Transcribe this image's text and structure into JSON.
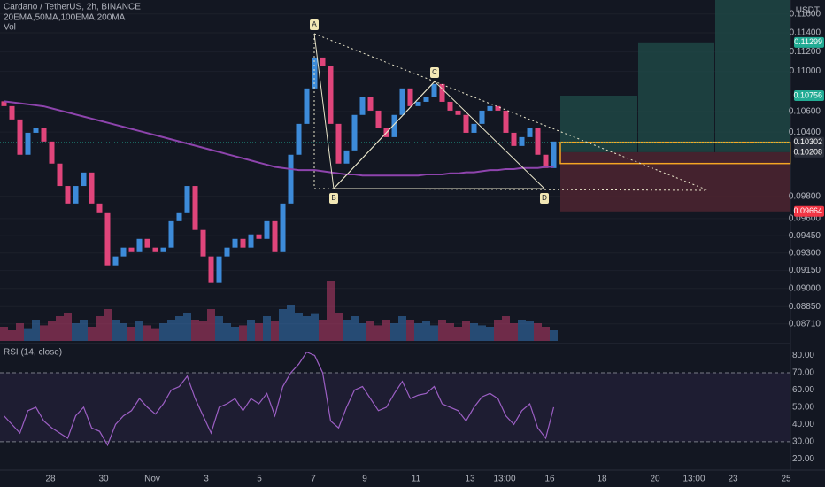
{
  "chart_data": {
    "type": "candlestick",
    "title": "Cardano / TetherUS, 2h, BINANCE",
    "indicators": "20EMA,50MA,100EMA,200MA",
    "volume_label": "Vol",
    "rsi_title": "RSI (14, close)",
    "currency": "USDT",
    "log_scale": true,
    "ylim": [
      0.0856,
      0.1175
    ],
    "yticks": [
      {
        "value": 0.116,
        "label": "0.11600"
      },
      {
        "value": 0.114,
        "label": "0.11400"
      },
      {
        "value": 0.112,
        "label": "0.11200"
      },
      {
        "value": 0.11,
        "label": "0.11000"
      },
      {
        "value": 0.106,
        "label": "0.10600"
      },
      {
        "value": 0.104,
        "label": "0.10400"
      },
      {
        "value": 0.098,
        "label": "0.09800"
      },
      {
        "value": 0.096,
        "label": "0.09600"
      },
      {
        "value": 0.0945,
        "label": "0.09450"
      },
      {
        "value": 0.093,
        "label": "0.09300"
      },
      {
        "value": 0.0915,
        "label": "0.09150"
      },
      {
        "value": 0.09,
        "label": "0.09000"
      },
      {
        "value": 0.0885,
        "label": "0.08850"
      },
      {
        "value": 0.0871,
        "label": "0.08710"
      }
    ],
    "price_tags": [
      {
        "value": 0.11299,
        "label": "0.11299",
        "color": "#22ab94"
      },
      {
        "value": 0.10756,
        "label": "0.10756",
        "color": "#22ab94"
      },
      {
        "value": 0.10302,
        "label": "0.10302",
        "color": "#2a2e39"
      },
      {
        "value": 0.10208,
        "label": "0.10208",
        "color": "#2a2e39"
      },
      {
        "value": 0.09664,
        "label": "0.09664",
        "color": "#f23645"
      }
    ],
    "open": 0.107,
    "closes": [
      0.10652,
      0.10522,
      0.10184,
      0.10393,
      0.10437,
      0.10309,
      0.10101,
      0.09894,
      0.09735,
      0.09894,
      0.10018,
      0.09735,
      0.09656,
      0.09194,
      0.0927,
      0.09346,
      0.09307,
      0.09422,
      0.09346,
      0.09307,
      0.09346,
      0.09577,
      0.09656,
      0.09894,
      0.095,
      0.0927,
      0.09045,
      0.0927,
      0.09346,
      0.09422,
      0.09346,
      0.09461,
      0.09422,
      0.09577,
      0.09307,
      0.09735,
      0.10184,
      0.10479,
      0.10828,
      0.11142,
      0.11051,
      0.10479,
      0.10101,
      0.10225,
      0.10566,
      0.10739,
      0.10608,
      0.10437,
      0.10351,
      0.10566,
      0.10828,
      0.10652,
      0.10695,
      0.10739,
      0.10872,
      0.10695,
      0.10608,
      0.10566,
      0.10393,
      0.10479,
      0.10608,
      0.10652,
      0.10608,
      0.10393,
      0.10267,
      0.10351,
      0.10437,
      0.10184,
      0.10059,
      0.10309
    ],
    "up_color": "#3d8bd9",
    "down_color": "#e0457b",
    "ma": {
      "color": "#8e44ad",
      "values": [
        0.107,
        0.1069,
        0.1068,
        0.1067,
        0.1066,
        0.1065,
        0.1063,
        0.1061,
        0.1059,
        0.1057,
        0.1055,
        0.1053,
        0.1051,
        0.1049,
        0.1047,
        0.1045,
        0.1043,
        0.1041,
        0.1039,
        0.1037,
        0.1035,
        0.1033,
        0.1031,
        0.1029,
        0.1027,
        0.1025,
        0.1023,
        0.1021,
        0.1019,
        0.1017,
        0.1015,
        0.1013,
        0.1011,
        0.1009,
        0.1007,
        0.1006,
        0.1005,
        0.1004,
        0.1004,
        0.1004,
        0.1003,
        0.1002,
        0.1001,
        0.1,
        0.1,
        0.0999,
        0.0999,
        0.0999,
        0.0999,
        0.0999,
        0.0999,
        0.0999,
        0.0999,
        0.1,
        0.1,
        0.1,
        0.1001,
        0.1001,
        0.1002,
        0.1002,
        0.1003,
        0.1004,
        0.1004,
        0.1005,
        0.1005,
        0.1006,
        0.1006,
        0.1006,
        0.1007,
        0.1007
      ]
    },
    "volume": [
      20,
      15,
      25,
      18,
      30,
      22,
      28,
      35,
      40,
      25,
      30,
      20,
      35,
      45,
      30,
      25,
      20,
      28,
      22,
      18,
      25,
      30,
      35,
      40,
      30,
      28,
      45,
      35,
      25,
      20,
      22,
      30,
      25,
      35,
      28,
      45,
      50,
      40,
      35,
      38,
      30,
      85,
      40,
      30,
      35,
      25,
      28,
      22,
      30,
      25,
      35,
      30,
      25,
      28,
      22,
      30,
      25,
      20,
      28,
      25,
      22,
      20,
      30,
      35,
      25,
      30,
      28,
      25,
      20,
      15
    ],
    "rsi": {
      "color": "#9c5fc4",
      "values": [
        45,
        40,
        35,
        48,
        50,
        42,
        38,
        35,
        32,
        45,
        50,
        38,
        36,
        28,
        40,
        45,
        48,
        55,
        50,
        46,
        52,
        60,
        62,
        68,
        55,
        45,
        35,
        50,
        52,
        55,
        48,
        55,
        52,
        58,
        45,
        62,
        70,
        75,
        82,
        80,
        70,
        42,
        38,
        50,
        60,
        62,
        55,
        48,
        50,
        58,
        65,
        55,
        57,
        58,
        62,
        52,
        50,
        48,
        42,
        50,
        56,
        58,
        55,
        45,
        40,
        48,
        52,
        38,
        32,
        50
      ]
    },
    "rsi_ylim": [
      14,
      86.4
    ],
    "rsi_ticks": [
      {
        "value": 80,
        "label": "80.00"
      },
      {
        "value": 70,
        "label": "70.00"
      },
      {
        "value": 60,
        "label": "60.00"
      },
      {
        "value": 50,
        "label": "50.00"
      },
      {
        "value": 40,
        "label": "40.00"
      },
      {
        "value": 30,
        "label": "30.00"
      },
      {
        "value": 20,
        "label": "20.00"
      }
    ],
    "rsi_bands": [
      70,
      30
    ],
    "time_labels": [
      "28",
      "30",
      "Nov",
      "3",
      "5",
      "7",
      "9",
      "11",
      "13",
      "13:00",
      "16",
      "18",
      "20",
      "13:00",
      "23",
      "25"
    ],
    "pattern_labels": [
      "A",
      "B",
      "C",
      "D"
    ]
  }
}
